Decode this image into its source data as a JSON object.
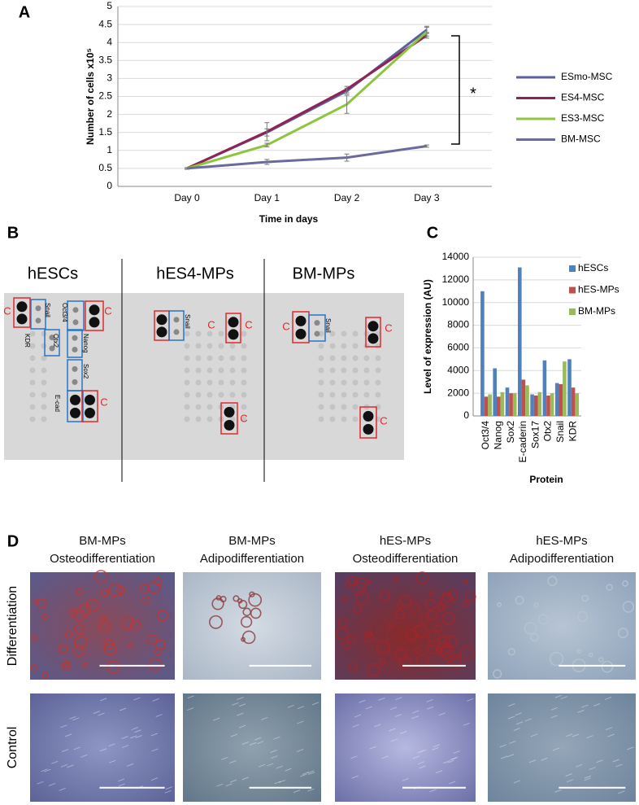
{
  "panel_labels": [
    "A",
    "B",
    "C",
    "D"
  ],
  "chart_data": [
    {
      "type": "line",
      "y_label": "Number of cells x10⁵",
      "x_label": "Time in days",
      "annotation": "*",
      "categories": [
        "Day 0",
        "Day 1",
        "Day 2",
        "Day 3"
      ],
      "series": [
        {
          "name": "ESmo-MSC",
          "color": "#5b5e9f",
          "values": [
            0.5,
            1.5,
            2.65,
            4.35
          ],
          "errors": [
            0.02,
            0.1,
            0.08,
            0.1
          ]
        },
        {
          "name": "ES4-MSC",
          "color": "#8e2456",
          "values": [
            0.5,
            1.52,
            2.7,
            4.2
          ],
          "errors": [
            0.02,
            0.25,
            0.08,
            0.08
          ]
        },
        {
          "name": "ES3-MSC",
          "color": "#8cc63e",
          "values": [
            0.5,
            1.15,
            2.28,
            4.3
          ],
          "errors": [
            0.02,
            0.05,
            0.25,
            0.12
          ]
        },
        {
          "name": "BM-MSC",
          "color": "#6a6a9c",
          "values": [
            0.5,
            0.68,
            0.8,
            1.12
          ],
          "errors": [
            0.02,
            0.07,
            0.1,
            0.03
          ]
        }
      ],
      "ylim": [
        0,
        5
      ],
      "yticks": [
        0,
        0.5,
        1,
        1.5,
        2,
        2.5,
        3,
        3.5,
        4,
        4.5,
        5
      ],
      "grid": true,
      "legend": "right"
    },
    {
      "type": "bar",
      "y_label": "Level of expression (AU)",
      "x_label": "Protein",
      "categories": [
        "Oct3/4",
        "Nanog",
        "Sox2",
        "E-caderin",
        "Sox17",
        "Otx2",
        "Snail",
        "KDR"
      ],
      "series": [
        {
          "name": "hESCs",
          "color": "#4f81bd",
          "values": [
            11000,
            4200,
            2500,
            13100,
            1900,
            4900,
            2900,
            5000
          ]
        },
        {
          "name": "hES-MPs",
          "color": "#c0504d",
          "values": [
            1700,
            1700,
            2000,
            3200,
            1800,
            1800,
            2800,
            2500
          ]
        },
        {
          "name": "BM-MPs",
          "color": "#9bbb59",
          "values": [
            1900,
            2100,
            2000,
            2700,
            2100,
            2000,
            4800,
            2000
          ]
        }
      ],
      "ylim": [
        0,
        14000
      ],
      "yticks": [
        0,
        2000,
        4000,
        6000,
        8000,
        10000,
        12000,
        14000
      ],
      "grid": true,
      "legend": "upper right"
    }
  ],
  "blot": {
    "titles": [
      "hESCs",
      "hES4-MPs",
      "BM-MPs"
    ],
    "control_label": "C",
    "spot_labels": [
      "Snail",
      "Oct3/4",
      "Otx2",
      "KDR",
      "Nanog",
      "Sox2",
      "E-cad"
    ]
  },
  "micrographs": {
    "columns": [
      {
        "line1": "BM-MPs",
        "line2": "Osteodifferentiation"
      },
      {
        "line1": "BM-MPs",
        "line2": "Adipodifferentiation"
      },
      {
        "line1": "hES-MPs",
        "line2": "Osteodifferentiation"
      },
      {
        "line1": "hES-MPs",
        "line2": "Adipodifferentiation"
      }
    ],
    "rows": [
      "Differentiation",
      "Control"
    ]
  }
}
